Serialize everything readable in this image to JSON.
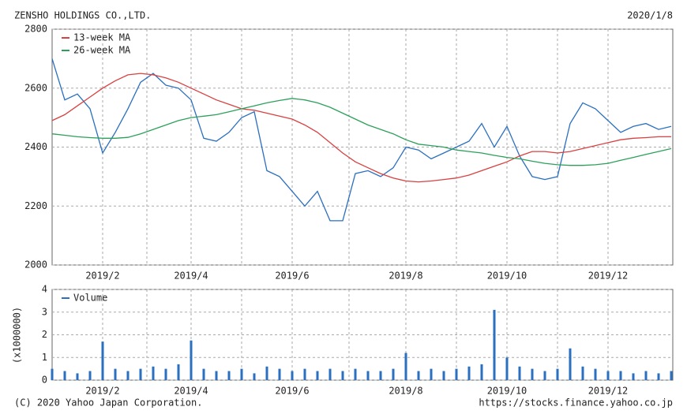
{
  "header": {
    "company": "ZENSHO HOLDINGS CO.,LTD.",
    "date": "2020/1/8"
  },
  "footer": {
    "copyright": "(C) 2020 Yahoo Japan Corporation.",
    "url": "https://stocks.finance.yahoo.co.jp"
  },
  "chart_data": [
    {
      "type": "line",
      "categories": [
        null,
        null,
        null,
        null,
        "2019/2",
        null,
        null,
        null,
        null,
        null,
        null,
        "2019/4",
        null,
        null,
        null,
        null,
        null,
        null,
        null,
        "2019/6",
        null,
        null,
        null,
        null,
        null,
        null,
        null,
        null,
        "2019/8",
        null,
        null,
        null,
        null,
        null,
        null,
        null,
        "2019/10",
        null,
        null,
        null,
        null,
        null,
        null,
        null,
        "2019/12",
        null,
        null,
        null,
        null,
        null
      ],
      "ylim": [
        2000,
        2800
      ],
      "yticks": [
        2000,
        2200,
        2400,
        2600,
        2800
      ],
      "grid": true,
      "legend": "upper left",
      "series": [
        {
          "color": "#2a6fc0",
          "values": [
            2700,
            2560,
            2580,
            2530,
            2380,
            2450,
            2530,
            2620,
            2650,
            2610,
            2600,
            2560,
            2430,
            2420,
            2450,
            2500,
            2520,
            2320,
            2300,
            2250,
            2200,
            2250,
            2150,
            2150,
            2310,
            2320,
            2300,
            2330,
            2400,
            2390,
            2360,
            2380,
            2400,
            2420,
            2480,
            2400,
            2470,
            2370,
            2300,
            2290,
            2300,
            2480,
            2550,
            2530,
            2490,
            2450,
            2470,
            2480,
            2460,
            2470
          ]
        },
        {
          "name": "13-week MA",
          "color": "#d94040",
          "values": [
            2490,
            2510,
            2540,
            2570,
            2600,
            2625,
            2645,
            2650,
            2645,
            2635,
            2620,
            2600,
            2580,
            2560,
            2545,
            2530,
            2525,
            2515,
            2505,
            2495,
            2475,
            2450,
            2415,
            2380,
            2350,
            2330,
            2310,
            2295,
            2285,
            2282,
            2285,
            2290,
            2295,
            2305,
            2320,
            2335,
            2350,
            2370,
            2385,
            2385,
            2380,
            2385,
            2395,
            2405,
            2415,
            2425,
            2430,
            2432,
            2435,
            2435
          ]
        },
        {
          "name": "26-week MA",
          "color": "#2ca05a",
          "values": [
            2445,
            2440,
            2435,
            2432,
            2430,
            2430,
            2433,
            2445,
            2460,
            2475,
            2490,
            2500,
            2505,
            2510,
            2520,
            2530,
            2540,
            2550,
            2558,
            2565,
            2560,
            2550,
            2535,
            2515,
            2495,
            2475,
            2460,
            2445,
            2425,
            2410,
            2405,
            2400,
            2390,
            2385,
            2380,
            2372,
            2365,
            2360,
            2352,
            2345,
            2340,
            2338,
            2338,
            2340,
            2345,
            2355,
            2365,
            2375,
            2385,
            2395
          ]
        }
      ]
    },
    {
      "type": "bar",
      "y_label": "(x1000000)",
      "categories": [
        null,
        null,
        null,
        null,
        "2019/2",
        null,
        null,
        null,
        null,
        null,
        null,
        "2019/4",
        null,
        null,
        null,
        null,
        null,
        null,
        null,
        "2019/6",
        null,
        null,
        null,
        null,
        null,
        null,
        null,
        null,
        "2019/8",
        null,
        null,
        null,
        null,
        null,
        null,
        null,
        "2019/10",
        null,
        null,
        null,
        null,
        null,
        null,
        null,
        "2019/12",
        null,
        null,
        null,
        null,
        null
      ],
      "ylim": [
        0,
        4
      ],
      "yticks": [
        0,
        1,
        2,
        3,
        4
      ],
      "grid": true,
      "legend": "upper left",
      "series": [
        {
          "name": "Volume",
          "color": "#2a6fc0",
          "values": [
            0.5,
            0.4,
            0.3,
            0.4,
            1.7,
            0.5,
            0.4,
            0.5,
            0.6,
            0.5,
            0.7,
            1.75,
            0.5,
            0.4,
            0.4,
            0.5,
            0.3,
            0.6,
            0.5,
            0.4,
            0.5,
            0.4,
            0.5,
            0.4,
            0.5,
            0.4,
            0.4,
            0.5,
            1.2,
            0.4,
            0.5,
            0.4,
            0.5,
            0.6,
            0.7,
            3.1,
            1.0,
            0.6,
            0.5,
            0.4,
            0.5,
            1.4,
            0.6,
            0.5,
            0.4,
            0.4,
            0.3,
            0.4,
            0.3,
            0.4
          ]
        }
      ]
    }
  ]
}
